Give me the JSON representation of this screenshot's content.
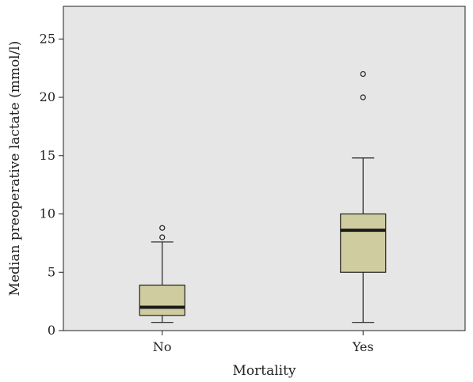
{
  "chart_data": {
    "type": "boxplot",
    "xlabel": "Mortality",
    "ylabel": "Median preoperative lactate (mmol/l)",
    "ylim": [
      0,
      27.8
    ],
    "yticks": [
      0,
      5,
      10,
      15,
      20,
      25
    ],
    "grid": false,
    "categories": [
      "No",
      "Yes"
    ],
    "boxes": [
      {
        "category": "No",
        "whisker_low": 0.7,
        "q1": 1.3,
        "median": 2.0,
        "q3": 3.9,
        "whisker_high": 7.6,
        "outliers": [
          8.0,
          8.8
        ]
      },
      {
        "category": "Yes",
        "whisker_low": 0.7,
        "q1": 5.0,
        "median": 8.6,
        "q3": 10.0,
        "whisker_high": 14.8,
        "outliers": [
          20.0,
          22.0
        ]
      }
    ],
    "colors": {
      "plot_background": "#e6e6e6",
      "box_fill": "#cfcc9f",
      "median_line": "#1a1a1a",
      "axis": "#222222"
    }
  }
}
